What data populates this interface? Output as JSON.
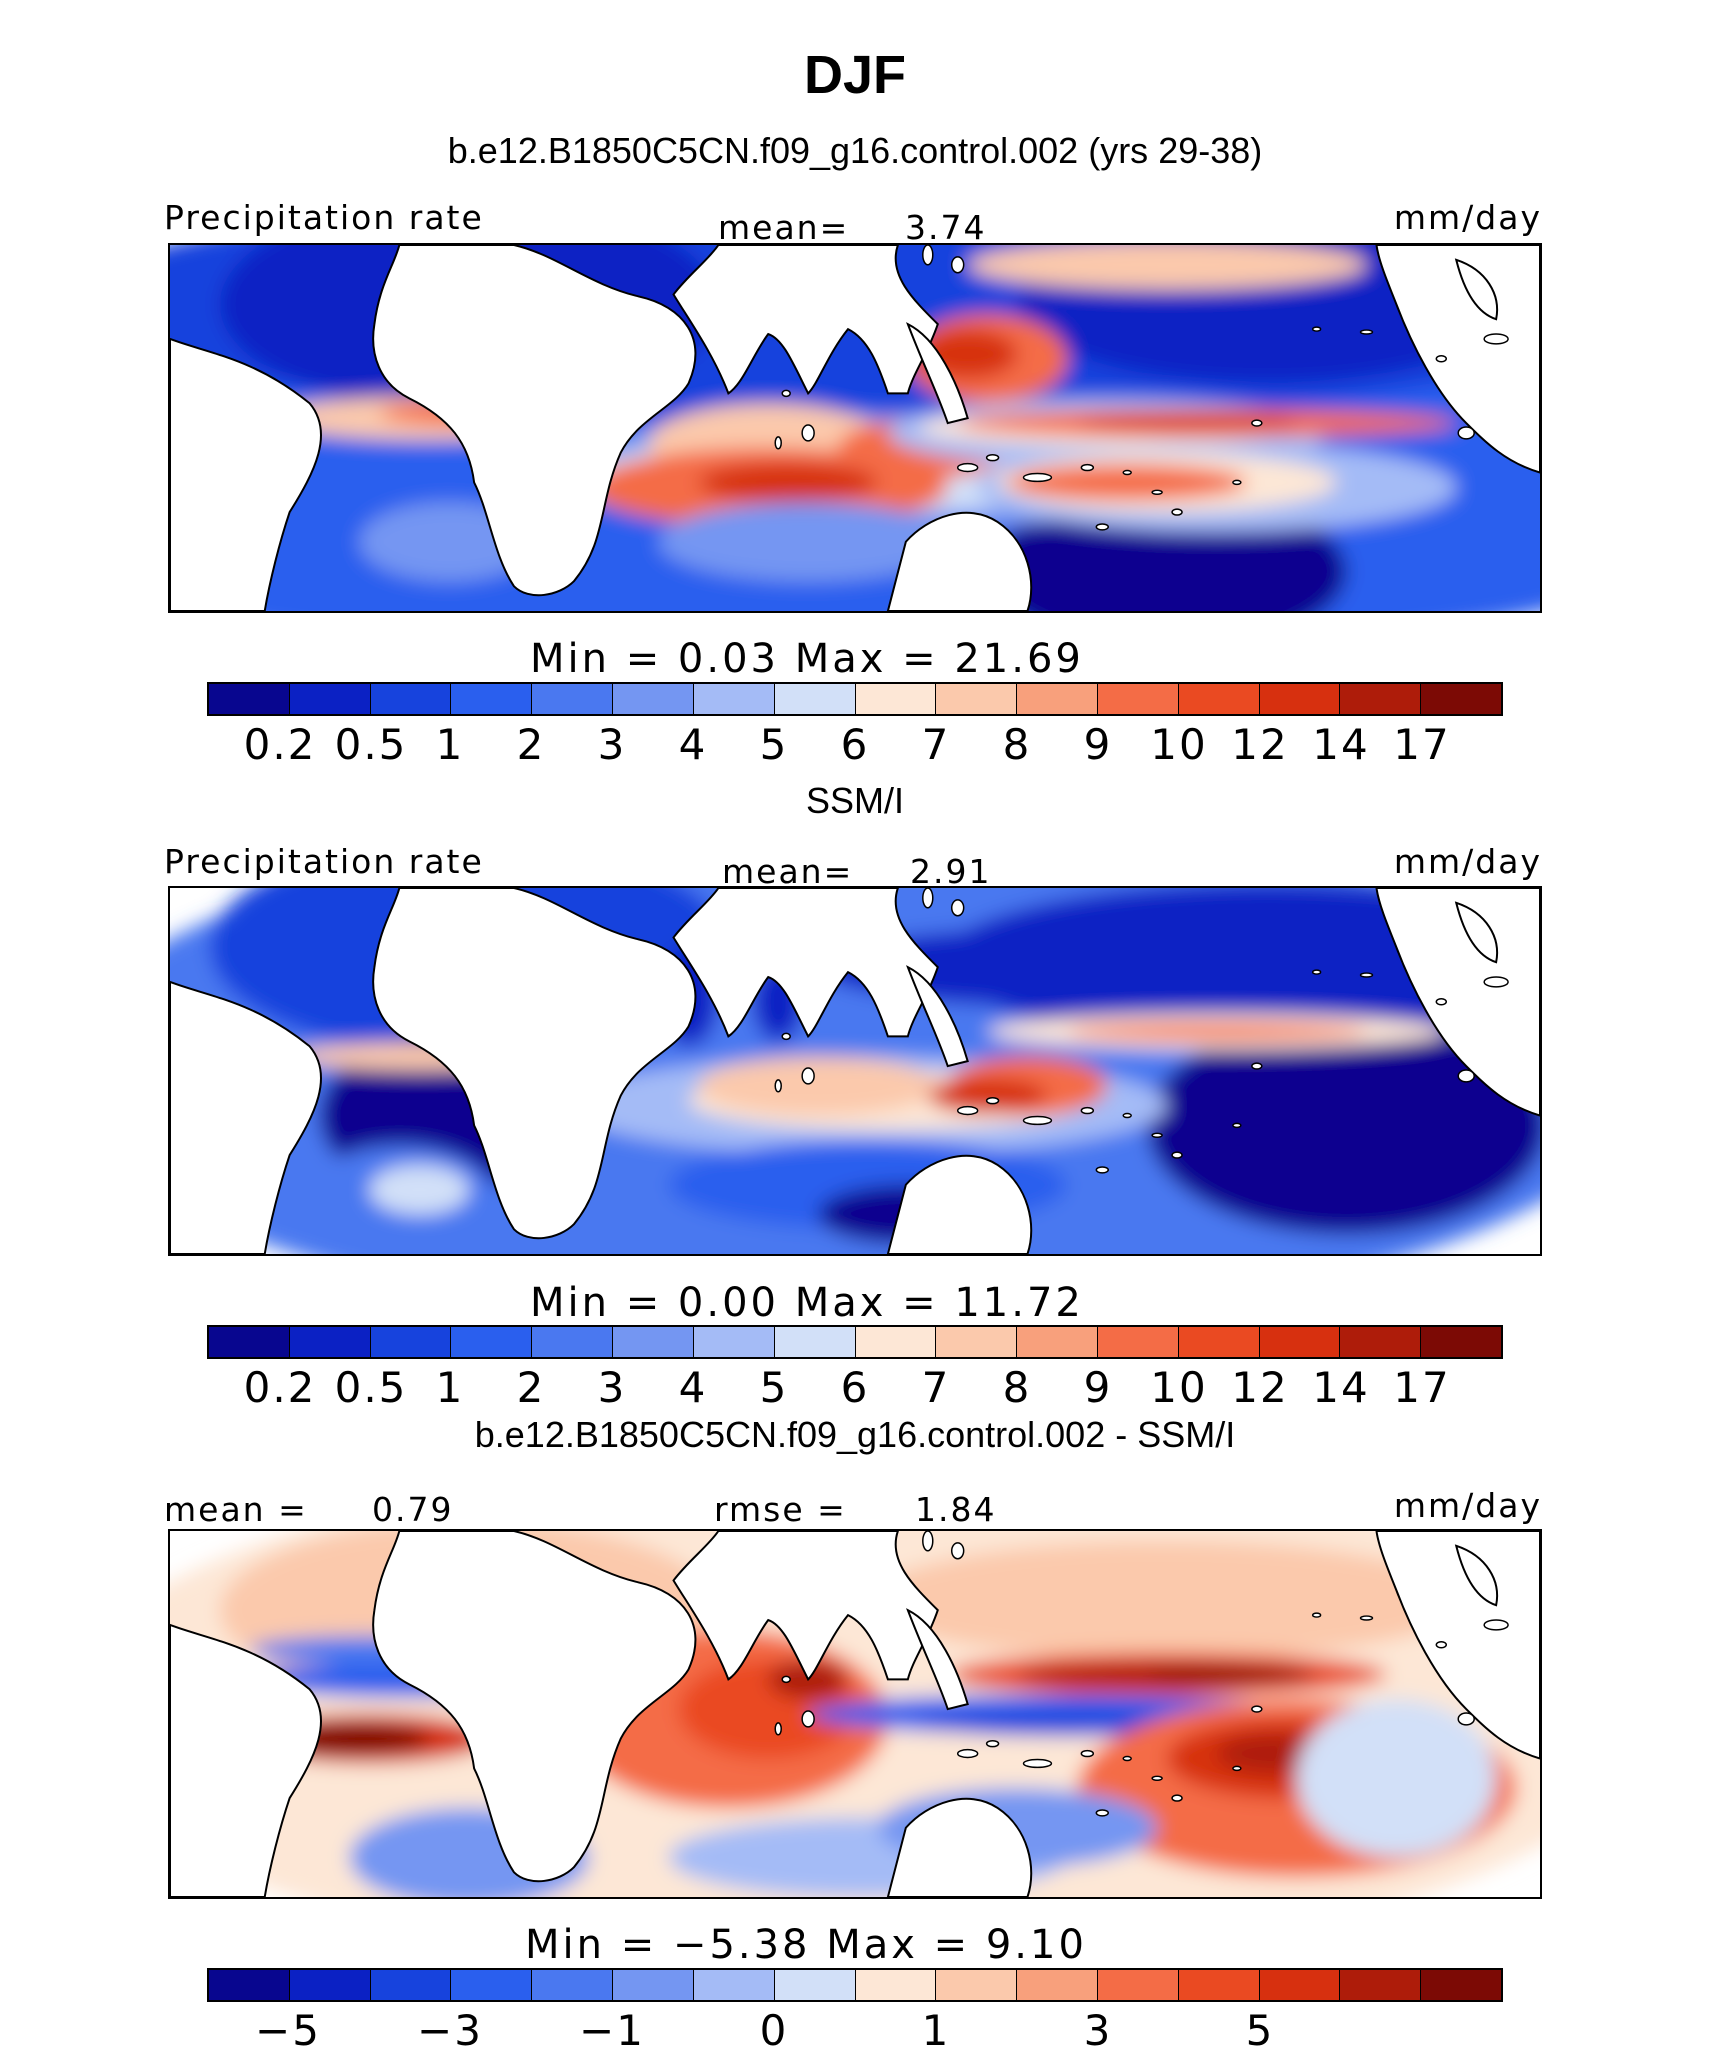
{
  "header": {
    "title": "DJF",
    "subtitle": "b.e12.B1850C5CN.f09_g16.control.002 (yrs 29-38)"
  },
  "palette": [
    "#08068f",
    "#0b21c4",
    "#1743dd",
    "#2a5fee",
    "#4a78f0",
    "#7496f2",
    "#a4bbf6",
    "#d2e0f8",
    "#fde7d6",
    "#fbc9ac",
    "#f8a07c",
    "#f46c46",
    "#ea4a22",
    "#d7300f",
    "#ae1c0a",
    "#7c0a05"
  ],
  "panels": [
    {
      "variable_label": "Precipitation rate",
      "stat_label": "mean=",
      "stat_value": "3.74",
      "units": "mm/day",
      "min_max_line": "Min  =    0.03  Max  =   21.69",
      "ticks": [
        "0.2",
        "0.5",
        "1",
        "2",
        "3",
        "4",
        "5",
        "6",
        "7",
        "8",
        "9",
        "10",
        "12",
        "14",
        "17"
      ],
      "field": "model"
    },
    {
      "section_title": "SSM/I",
      "variable_label": "Precipitation rate",
      "stat_label": "mean=",
      "stat_value": "2.91",
      "units": "mm/day",
      "min_max_line": "Min  =    0.00  Max  =   11.72",
      "ticks": [
        "0.2",
        "0.5",
        "1",
        "2",
        "3",
        "4",
        "5",
        "6",
        "7",
        "8",
        "9",
        "10",
        "12",
        "14",
        "17"
      ],
      "field": "obs"
    },
    {
      "section_title": "b.e12.B1850C5CN.f09_g16.control.002 - SSM/I",
      "variable_label": "mean =",
      "variable_value": "0.79",
      "stat_label": "rmse =",
      "stat_value": "1.84",
      "units": "mm/day",
      "min_max_line": "Min  =  −5.38  Max  =    9.10",
      "diff_ticks": [
        "−5",
        "−3",
        "−1",
        "0",
        "1",
        "3",
        "5"
      ],
      "field": "diff"
    }
  ]
}
